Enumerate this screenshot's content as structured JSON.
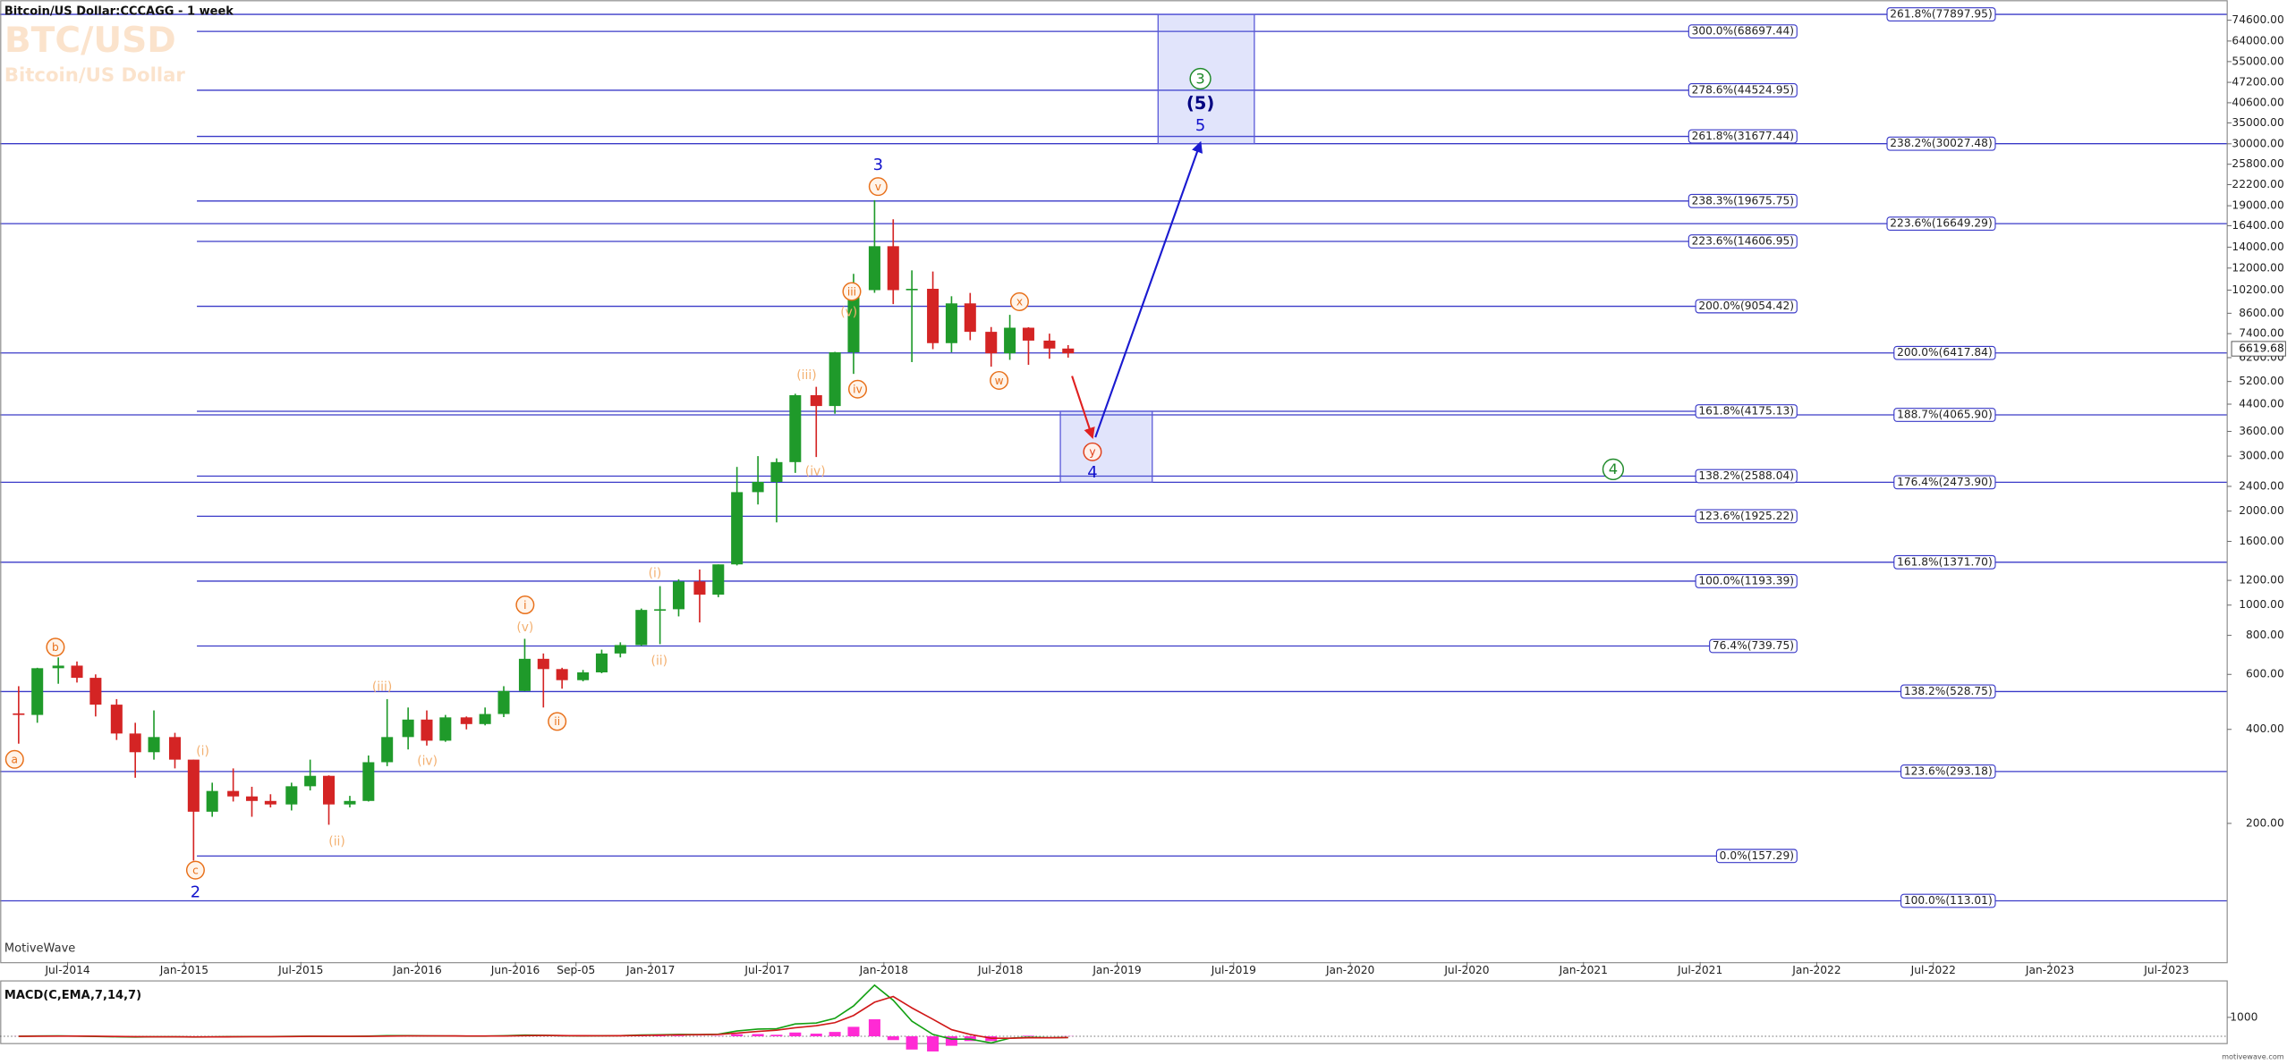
{
  "chart_data": {
    "type": "candlestick",
    "title": "Bitcoin/US Dollar:CCCAGG - 1 week",
    "watermark_symbol": "BTC/USD",
    "watermark_name": "Bitcoin/US Dollar",
    "branding": "MotiveWave",
    "footer_logo": "motivewave.com",
    "x": [
      2014.29,
      2014.37,
      2014.46,
      2014.54,
      2014.62,
      2014.71,
      2014.79,
      2014.87,
      2014.96,
      2015.04,
      2015.12,
      2015.21,
      2015.29,
      2015.37,
      2015.46,
      2015.54,
      2015.62,
      2015.71,
      2015.79,
      2015.87,
      2015.96,
      2016.04,
      2016.12,
      2016.21,
      2016.29,
      2016.37,
      2016.46,
      2016.54,
      2016.62,
      2016.71,
      2016.79,
      2016.87,
      2016.96,
      2017.04,
      2017.12,
      2017.21,
      2017.29,
      2017.37,
      2017.46,
      2017.54,
      2017.62,
      2017.71,
      2017.79,
      2017.87,
      2017.96,
      2018.04,
      2018.12,
      2018.21,
      2018.29,
      2018.37,
      2018.46,
      2018.54,
      2018.62,
      2018.71,
      2018.79
    ],
    "open": [
      450,
      445,
      628,
      640,
      585,
      480,
      388,
      338,
      378,
      320,
      218,
      254,
      244,
      236,
      230,
      263,
      284,
      230,
      236,
      314,
      378,
      430,
      368,
      437,
      416,
      448,
      531,
      673,
      624,
      575,
      609,
      700,
      745,
      965,
      970,
      1190,
      1080,
      1350,
      2300,
      2480,
      2870,
      4700,
      4340,
      6450,
      10200,
      14100,
      10200,
      10300,
      6900,
      9250,
      7500,
      6400,
      7730,
      7030,
      6630
    ],
    "high": [
      550,
      630,
      680,
      660,
      600,
      500,
      420,
      460,
      390,
      320,
      270,
      300,
      262,
      248,
      270,
      320,
      285,
      245,
      330,
      500,
      470,
      460,
      445,
      440,
      470,
      550,
      780,
      700,
      630,
      620,
      720,
      760,
      975,
      1150,
      1210,
      1300,
      1350,
      2770,
      3000,
      2950,
      4750,
      5000,
      6470,
      11500,
      19800,
      17200,
      11800,
      11700,
      9750,
      9990,
      7770,
      8500,
      7760,
      7400,
      6800
    ],
    "low": [
      360,
      420,
      560,
      565,
      440,
      370,
      280,
      320,
      300,
      152,
      210,
      235,
      210,
      225,
      220,
      255,
      198,
      225,
      235,
      305,
      345,
      355,
      365,
      400,
      412,
      438,
      530,
      470,
      540,
      570,
      605,
      680,
      740,
      750,
      920,
      880,
      1060,
      1340,
      2100,
      1840,
      2650,
      2980,
      4100,
      5500,
      10000,
      9200,
      6000,
      6600,
      6450,
      7050,
      5800,
      6100,
      5880,
      6150,
      6200
    ],
    "close": [
      445,
      628,
      640,
      585,
      480,
      388,
      338,
      378,
      320,
      218,
      254,
      244,
      236,
      230,
      263,
      284,
      230,
      236,
      314,
      378,
      430,
      368,
      437,
      416,
      448,
      531,
      673,
      624,
      575,
      609,
      700,
      745,
      965,
      970,
      1190,
      1080,
      1350,
      2300,
      2480,
      2870,
      4700,
      4340,
      6450,
      10200,
      14100,
      10200,
      10300,
      6900,
      9250,
      7500,
      6400,
      7730,
      7030,
      6630,
      6400
    ],
    "up_color": "#1f9a2a",
    "down_color": "#d42424",
    "log_scale": true,
    "ylim": [
      72,
      86600
    ],
    "yticks": [
      {
        "value": 200,
        "label": "200.00"
      },
      {
        "value": 400,
        "label": "400.00"
      },
      {
        "value": 600,
        "label": "600.00"
      },
      {
        "value": 800,
        "label": "800.00"
      },
      {
        "value": 1000,
        "label": "1000.00"
      },
      {
        "value": 1200,
        "label": "1200.00"
      },
      {
        "value": 1600,
        "label": "1600.00"
      },
      {
        "value": 2000,
        "label": "2000.00"
      },
      {
        "value": 2400,
        "label": "2400.00"
      },
      {
        "value": 3000,
        "label": "3000.00"
      },
      {
        "value": 3600,
        "label": "3600.00"
      },
      {
        "value": 4400,
        "label": "4400.00"
      },
      {
        "value": 5200,
        "label": "5200.00"
      },
      {
        "value": 6200,
        "label": "6200.00"
      },
      {
        "value": 7400,
        "label": "7400.00"
      },
      {
        "value": 8600,
        "label": "8600.00"
      },
      {
        "value": 10200,
        "label": "10200.00"
      },
      {
        "value": 12000,
        "label": "12000.00"
      },
      {
        "value": 14000,
        "label": "14000.00"
      },
      {
        "value": 16400,
        "label": "16400.00"
      },
      {
        "value": 19000,
        "label": "19000.00"
      },
      {
        "value": 22200,
        "label": "22200.00"
      },
      {
        "value": 25800,
        "label": "25800.00"
      },
      {
        "value": 30000,
        "label": "30000.00"
      },
      {
        "value": 35000,
        "label": "35000.00"
      },
      {
        "value": 40600,
        "label": "40600.00"
      },
      {
        "value": 47200,
        "label": "47200.00"
      },
      {
        "value": 55000,
        "label": "55000.00"
      },
      {
        "value": 64000,
        "label": "64000.00"
      },
      {
        "value": 74600,
        "label": "74600.00"
      }
    ],
    "xlim": [
      2014.21,
      2023.76
    ],
    "xticks": [
      {
        "value": 2014.5,
        "label": "Jul-2014"
      },
      {
        "value": 2015.0,
        "label": "Jan-2015"
      },
      {
        "value": 2015.5,
        "label": "Jul-2015"
      },
      {
        "value": 2016.0,
        "label": "Jan-2016"
      },
      {
        "value": 2016.42,
        "label": "Jun-2016"
      },
      {
        "value": 2016.68,
        "label": "Sep-05"
      },
      {
        "value": 2017.0,
        "label": "Jan-2017"
      },
      {
        "value": 2017.5,
        "label": "Jul-2017"
      },
      {
        "value": 2018.0,
        "label": "Jan-2018"
      },
      {
        "value": 2018.5,
        "label": "Jul-2018"
      },
      {
        "value": 2019.0,
        "label": "Jan-2019"
      },
      {
        "value": 2019.5,
        "label": "Jul-2019"
      },
      {
        "value": 2020.0,
        "label": "Jan-2020"
      },
      {
        "value": 2020.5,
        "label": "Jul-2020"
      },
      {
        "value": 2021.0,
        "label": "Jan-2021"
      },
      {
        "value": 2021.5,
        "label": "Jul-2021"
      },
      {
        "value": 2022.0,
        "label": "Jan-2022"
      },
      {
        "value": 2022.5,
        "label": "Jul-2022"
      },
      {
        "value": 2023.0,
        "label": "Jan-2023"
      },
      {
        "value": 2023.5,
        "label": "Jul-2023"
      }
    ],
    "last_price": 6619.68,
    "fib_color": "#3a3ac8",
    "fib_levels_long": [
      {
        "value": 77897.95,
        "label": "261.8%(77897.95)"
      },
      {
        "value": 30027.48,
        "label": "238.2%(30027.48)"
      },
      {
        "value": 16649.29,
        "label": "223.6%(16649.29)"
      },
      {
        "value": 6417.84,
        "label": "200.0%(6417.84)"
      },
      {
        "value": 4065.9,
        "label": "188.7%(4065.90)"
      },
      {
        "value": 2473.9,
        "label": "176.4%(2473.90)"
      },
      {
        "value": 1371.7,
        "label": "161.8%(1371.70)"
      },
      {
        "value": 528.75,
        "label": "138.2%(528.75)"
      },
      {
        "value": 293.18,
        "label": "123.6%(293.18)"
      },
      {
        "value": 113.01,
        "label": "100.0%(113.01)"
      }
    ],
    "fib_levels_short": [
      {
        "value": 68697.44,
        "label": "300.0%(68697.44)"
      },
      {
        "value": 44524.95,
        "label": "278.6%(44524.95)"
      },
      {
        "value": 31677.44,
        "label": "261.8%(31677.44)"
      },
      {
        "value": 19675.75,
        "label": "238.3%(19675.75)"
      },
      {
        "value": 14606.95,
        "label": "223.6%(14606.95)"
      },
      {
        "value": 9054.42,
        "label": "200.0%(9054.42)"
      },
      {
        "value": 4175.13,
        "label": "161.8%(4175.13)"
      },
      {
        "value": 2588.04,
        "label": "138.2%(2588.04)"
      },
      {
        "value": 1925.22,
        "label": "123.6%(1925.22)"
      },
      {
        "value": 1193.39,
        "label": "100.0%(1193.39)"
      },
      {
        "value": 739.75,
        "label": "76.4%(739.75)"
      },
      {
        "value": 157.29,
        "label": "0.0%(157.29)"
      }
    ],
    "wave_labels": [
      "3",
      "v",
      "iii",
      "(v)",
      "iv",
      "(iii)",
      "(iv)",
      "x",
      "w",
      "y",
      "4",
      "3",
      "(5)",
      "5",
      "4",
      "i",
      "(v)",
      "ii",
      "(i)",
      "(ii)",
      "(iii)",
      "(iv)",
      "(i)",
      "(ii)",
      "b",
      "a",
      "c",
      "2"
    ],
    "indicator": {
      "title": "MACD(C,EMA,7,14,7)",
      "ylim": [
        -385,
        2770
      ],
      "yticks": [
        {
          "value": 1000,
          "label": "1000"
        }
      ],
      "macd_color": "#12a012",
      "signal_color": "#d01818",
      "histogram_color": "#ff2ad4",
      "macd_values": [
        5,
        15,
        20,
        10,
        -10,
        -25,
        -35,
        -25,
        -25,
        -40,
        -30,
        -20,
        -15,
        -12,
        -5,
        5,
        -5,
        -5,
        10,
        30,
        35,
        20,
        15,
        10,
        12,
        25,
        60,
        50,
        30,
        20,
        25,
        35,
        70,
        80,
        100,
        90,
        110,
        280,
        380,
        400,
        650,
        700,
        950,
        1600,
        2700,
        1900,
        800,
        100,
        -150,
        -150,
        -350,
        -100,
        -50,
        -80,
        -60
      ],
      "signal_values": [
        0,
        5,
        10,
        12,
        5,
        -8,
        -20,
        -25,
        -25,
        -30,
        -32,
        -28,
        -22,
        -18,
        -12,
        -5,
        -5,
        -5,
        0,
        12,
        22,
        22,
        20,
        16,
        14,
        18,
        35,
        42,
        38,
        30,
        28,
        30,
        45,
        60,
        75,
        85,
        95,
        170,
        260,
        320,
        450,
        560,
        720,
        1100,
        1800,
        2100,
        1500,
        900,
        350,
        100,
        -100,
        -100,
        -80,
        -80,
        -70
      ],
      "histogram_values": [
        5,
        10,
        10,
        -2,
        -15,
        -17,
        -15,
        0,
        0,
        -10,
        2,
        8,
        7,
        6,
        7,
        10,
        0,
        0,
        10,
        18,
        13,
        -2,
        -5,
        -6,
        -2,
        7,
        25,
        8,
        -8,
        -10,
        -3,
        5,
        25,
        20,
        25,
        5,
        15,
        110,
        120,
        80,
        200,
        140,
        230,
        500,
        900,
        -200,
        -700,
        -800,
        -500,
        -250,
        -250,
        0,
        30,
        0,
        10
      ]
    }
  }
}
